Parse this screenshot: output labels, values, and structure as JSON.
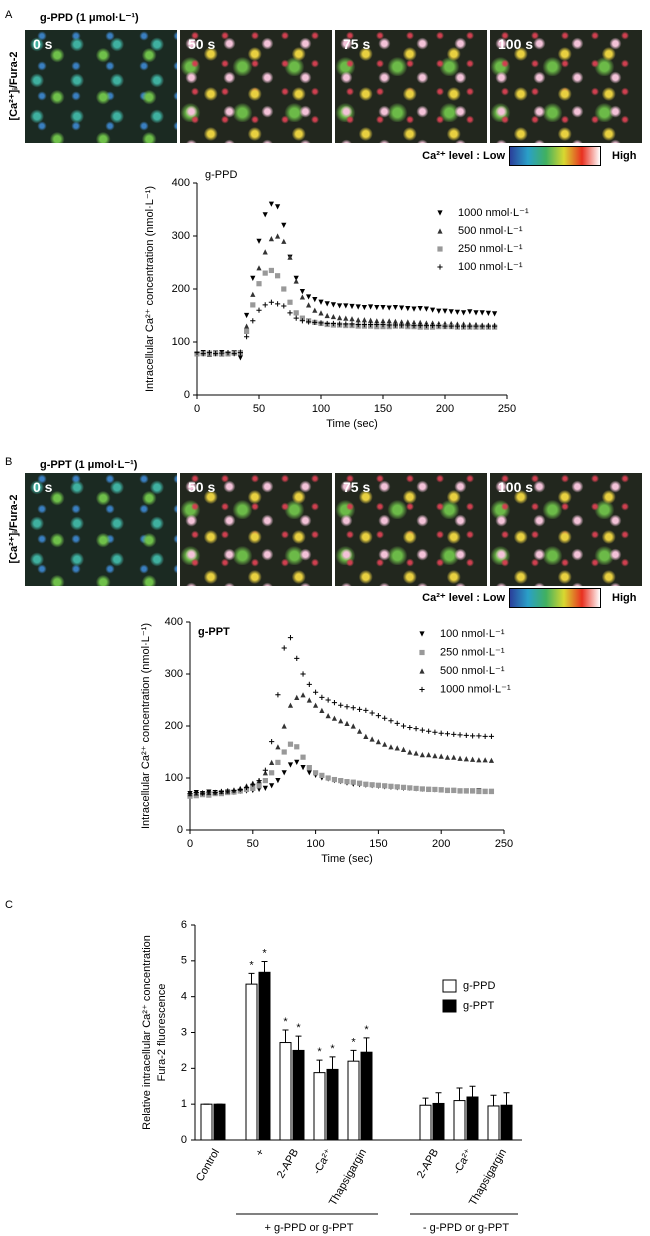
{
  "panels": [
    {
      "label": "A",
      "title": "g-PPD (1 μmol·L⁻¹)",
      "ylabel": "[Ca²⁺]ᵢ/Fura-2",
      "frames": [
        "0 s",
        "50 s",
        "75 s",
        "100 s"
      ],
      "colorbar": {
        "label": "Ca²⁺ level : Low",
        "high": "High"
      }
    },
    {
      "label": "B",
      "title": "g-PPT (1 μmol·L⁻¹)",
      "ylabel": "[Ca²⁺]ᵢ/Fura-2",
      "frames": [
        "0 s",
        "50 s",
        "75 s",
        "100 s"
      ],
      "colorbar": {
        "label": "Ca²⁺ level : Low",
        "high": "High"
      }
    },
    {
      "label": "C"
    }
  ],
  "chart_data": [
    {
      "type": "scatter",
      "title": "g-PPD",
      "xlabel": "Time (sec)",
      "ylabel": "Intracellular Ca²⁺ concentration (nmol·L⁻¹)",
      "xlim": [
        0,
        250
      ],
      "xticks": [
        0,
        50,
        100,
        150,
        200,
        250
      ],
      "ylim": [
        0,
        400
      ],
      "yticks": [
        0,
        100,
        200,
        300,
        400
      ],
      "x": [
        0,
        5,
        10,
        15,
        20,
        25,
        30,
        35,
        40,
        45,
        50,
        55,
        60,
        65,
        70,
        75,
        80,
        85,
        90,
        95,
        100,
        105,
        110,
        115,
        120,
        125,
        130,
        135,
        140,
        145,
        150,
        155,
        160,
        165,
        170,
        175,
        180,
        185,
        190,
        195,
        200,
        205,
        210,
        215,
        220,
        225,
        230,
        235,
        240
      ],
      "series": [
        {
          "name": "1000 nmol·L⁻¹",
          "color": "#000000",
          "marker": "triangle-down",
          "values": [
            78,
            80,
            78,
            79,
            80,
            78,
            80,
            70,
            150,
            220,
            290,
            340,
            360,
            355,
            320,
            260,
            220,
            195,
            185,
            180,
            175,
            172,
            170,
            168,
            168,
            167,
            166,
            165,
            166,
            165,
            165,
            164,
            165,
            164,
            163,
            162,
            163,
            162,
            160,
            158,
            158,
            157,
            156,
            155,
            157,
            155,
            155,
            154,
            153
          ]
        },
        {
          "name": "500 nmol·L⁻¹",
          "color": "#333333",
          "marker": "triangle-up",
          "values": [
            78,
            79,
            77,
            80,
            79,
            78,
            80,
            82,
            130,
            190,
            240,
            270,
            295,
            300,
            290,
            260,
            215,
            185,
            170,
            160,
            155,
            150,
            148,
            146,
            145,
            144,
            142,
            142,
            141,
            140,
            140,
            140,
            139,
            138,
            138,
            137,
            137,
            136,
            136,
            135,
            135,
            135,
            134,
            134,
            133,
            133,
            132,
            132,
            132
          ]
        },
        {
          "name": "250 nmol·L⁻¹",
          "color": "#999999",
          "marker": "square",
          "values": [
            78,
            78,
            79,
            78,
            77,
            78,
            79,
            80,
            120,
            170,
            210,
            230,
            235,
            225,
            200,
            175,
            155,
            145,
            140,
            137,
            135,
            133,
            132,
            132,
            131,
            131,
            130,
            130,
            130,
            129,
            129,
            129,
            130,
            130,
            129,
            129,
            128,
            128,
            128,
            129,
            129,
            129,
            128,
            128,
            128,
            128,
            128,
            128,
            128
          ]
        },
        {
          "name": "100 nmol·L⁻¹",
          "color": "#000000",
          "marker": "plus",
          "values": [
            80,
            78,
            80,
            78,
            79,
            80,
            78,
            80,
            110,
            140,
            160,
            170,
            175,
            172,
            168,
            155,
            145,
            140,
            138,
            137,
            136,
            135,
            135,
            134,
            134,
            134,
            133,
            133,
            133,
            133,
            133,
            132,
            132,
            132,
            132,
            131,
            131,
            131,
            131,
            131,
            130,
            130,
            130,
            130,
            130,
            130,
            130,
            130,
            130
          ]
        }
      ]
    },
    {
      "type": "scatter",
      "title": "g-PPT",
      "xlabel": "Time (sec)",
      "ylabel": "Intracellular Ca²⁺ concentration (nmol·L⁻¹)",
      "xlim": [
        0,
        250
      ],
      "xticks": [
        0,
        50,
        100,
        150,
        200,
        250
      ],
      "ylim": [
        0,
        400
      ],
      "yticks": [
        0,
        100,
        200,
        300,
        400
      ],
      "x": [
        0,
        5,
        10,
        15,
        20,
        25,
        30,
        35,
        40,
        45,
        50,
        55,
        60,
        65,
        70,
        75,
        80,
        85,
        90,
        95,
        100,
        105,
        110,
        115,
        120,
        125,
        130,
        135,
        140,
        145,
        150,
        155,
        160,
        165,
        170,
        175,
        180,
        185,
        190,
        195,
        200,
        205,
        210,
        215,
        220,
        225,
        230,
        235,
        240
      ],
      "series": [
        {
          "name": "100 nmol·L⁻¹",
          "color": "#000000",
          "marker": "triangle-down",
          "values": [
            70,
            72,
            70,
            73,
            72,
            71,
            73,
            72,
            74,
            75,
            76,
            78,
            80,
            85,
            95,
            110,
            125,
            130,
            120,
            110,
            105,
            100,
            98,
            95,
            93,
            90,
            88,
            87,
            86,
            85,
            84,
            83,
            82,
            81,
            80,
            80,
            79,
            78,
            78,
            77,
            77,
            76,
            76,
            75,
            75,
            75,
            75,
            74,
            74
          ]
        },
        {
          "name": "250 nmol·L⁻¹",
          "color": "#999999",
          "marker": "square",
          "values": [
            65,
            66,
            68,
            67,
            70,
            70,
            72,
            73,
            75,
            78,
            80,
            85,
            95,
            110,
            130,
            150,
            165,
            160,
            140,
            120,
            110,
            105,
            100,
            97,
            95,
            93,
            92,
            90,
            88,
            87,
            86,
            85,
            84,
            83,
            82,
            81,
            80,
            79,
            78,
            78,
            77,
            76,
            76,
            75,
            75,
            75,
            74,
            74,
            74
          ]
        },
        {
          "name": "500 nmol·L⁻¹",
          "color": "#333333",
          "marker": "triangle-up",
          "values": [
            70,
            71,
            72,
            72,
            73,
            74,
            75,
            77,
            80,
            85,
            90,
            95,
            110,
            130,
            160,
            200,
            240,
            255,
            260,
            250,
            240,
            230,
            220,
            215,
            210,
            205,
            200,
            190,
            180,
            175,
            170,
            165,
            160,
            158,
            155,
            150,
            148,
            145,
            145,
            143,
            142,
            140,
            140,
            138,
            137,
            136,
            135,
            135,
            134
          ]
        },
        {
          "name": "1000 nmol·L⁻¹",
          "color": "#000000",
          "marker": "plus",
          "values": [
            70,
            72,
            71,
            73,
            72,
            74,
            75,
            76,
            78,
            82,
            88,
            95,
            115,
            170,
            260,
            350,
            370,
            330,
            300,
            280,
            265,
            255,
            250,
            245,
            240,
            237,
            235,
            232,
            230,
            225,
            220,
            215,
            210,
            205,
            200,
            197,
            195,
            192,
            190,
            188,
            186,
            185,
            184,
            183,
            182,
            181,
            181,
            180,
            180
          ]
        }
      ]
    },
    {
      "type": "bar",
      "ylabel": [
        "Relative intracellular Ca²⁺ concentration",
        "Fura-2  fluorescence"
      ],
      "ylim": [
        0,
        6
      ],
      "yticks": [
        0,
        1,
        2,
        3,
        4,
        5,
        6
      ],
      "groups": [
        {
          "categories": [
            "Control"
          ]
        },
        {
          "label": "+ g-PPD or g-PPT",
          "categories": [
            "+",
            "2-APB",
            "-Ca²⁺",
            "Thapsigargin"
          ]
        },
        {
          "label": "- g-PPD or g-PPT",
          "categories": [
            "2-APB",
            "-Ca²⁺",
            "Thapsigargin"
          ]
        }
      ],
      "series": [
        {
          "name": "g-PPD",
          "color": "#ffffff",
          "values": [
            1.0,
            4.35,
            2.72,
            1.88,
            2.2,
            0.97,
            1.1,
            0.95
          ],
          "errors": [
            0,
            0.3,
            0.35,
            0.35,
            0.3,
            0.2,
            0.35,
            0.3
          ],
          "significance": [
            null,
            "*",
            "*",
            "*",
            "*",
            null,
            null,
            null
          ]
        },
        {
          "name": "g-PPT",
          "color": "#000000",
          "values": [
            1.0,
            4.68,
            2.5,
            1.97,
            2.45,
            1.02,
            1.2,
            0.97
          ],
          "errors": [
            0,
            0.3,
            0.4,
            0.35,
            0.4,
            0.3,
            0.3,
            0.35
          ],
          "significance": [
            null,
            "*",
            "*",
            "*",
            "*",
            null,
            null,
            null
          ]
        }
      ]
    }
  ]
}
